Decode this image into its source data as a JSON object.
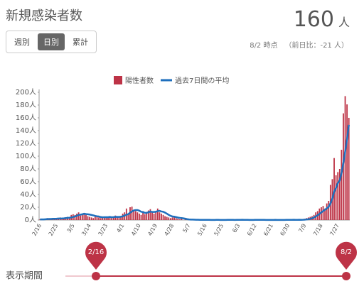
{
  "header": {
    "title": "新規感染者数",
    "tabs": [
      "週別",
      "日別",
      "累計"
    ]
  },
  "current": {
    "value": "160",
    "unit": "人",
    "date": "8/2 時点",
    "diff": "（前日比：-21 人）"
  },
  "period": {
    "label": "表示期間",
    "start": "2/16",
    "end": "8/2"
  },
  "chart_data": {
    "type": "bar",
    "categories": [
      "2/16",
      null,
      null,
      null,
      null,
      null,
      null,
      null,
      null,
      "2/25",
      null,
      null,
      null,
      null,
      null,
      null,
      null,
      null,
      "3/5",
      null,
      null,
      null,
      null,
      null,
      null,
      null,
      null,
      "3/14",
      null,
      null,
      null,
      null,
      null,
      null,
      null,
      null,
      "3/23",
      null,
      null,
      null,
      null,
      null,
      null,
      null,
      null,
      "4/1",
      null,
      null,
      null,
      null,
      null,
      null,
      null,
      null,
      "4/10",
      null,
      null,
      null,
      null,
      null,
      null,
      null,
      null,
      "4/19",
      null,
      null,
      null,
      null,
      null,
      null,
      null,
      null,
      "4/28",
      null,
      null,
      null,
      null,
      null,
      null,
      null,
      null,
      "5/7",
      null,
      null,
      null,
      null,
      null,
      null,
      null,
      null,
      "5/16",
      null,
      null,
      null,
      null,
      null,
      null,
      null,
      null,
      "5/25",
      null,
      null,
      null,
      null,
      null,
      null,
      null,
      null,
      "6/3",
      null,
      null,
      null,
      null,
      null,
      null,
      null,
      null,
      "6/12",
      null,
      null,
      null,
      null,
      null,
      null,
      null,
      null,
      "6/21",
      null,
      null,
      null,
      null,
      null,
      null,
      null,
      null,
      "6/30",
      null,
      null,
      null,
      null,
      null,
      null,
      null,
      null,
      "7/9",
      null,
      null,
      null,
      null,
      null,
      null,
      null,
      null,
      "7/18",
      null,
      null,
      null,
      null,
      null,
      null,
      null,
      null,
      "7/27",
      null,
      null,
      null,
      null,
      null,
      null
    ],
    "series": [
      {
        "name": "陽性者数",
        "type": "bar",
        "color": "#bd3346",
        "values": [
          1,
          2,
          1,
          2,
          3,
          2,
          1,
          2,
          3,
          2,
          3,
          4,
          2,
          3,
          4,
          5,
          3,
          8,
          9,
          8,
          10,
          12,
          7,
          9,
          11,
          8,
          6,
          5,
          4,
          3,
          5,
          6,
          4,
          3,
          5,
          4,
          5,
          4,
          6,
          3,
          5,
          7,
          4,
          5,
          6,
          10,
          12,
          18,
          9,
          20,
          21,
          15,
          14,
          12,
          10,
          8,
          14,
          9,
          11,
          15,
          17,
          12,
          10,
          14,
          18,
          12,
          10,
          8,
          6,
          5,
          4,
          3,
          4,
          6,
          3,
          2,
          1,
          2,
          0,
          1,
          0,
          1,
          0,
          1,
          0,
          0,
          1,
          0,
          0,
          0,
          0,
          1,
          0,
          0,
          0,
          0,
          1,
          0,
          0,
          0,
          0,
          0,
          1,
          0,
          0,
          0,
          0,
          1,
          0,
          0,
          1,
          0,
          0,
          0,
          0,
          0,
          0,
          1,
          0,
          0,
          0,
          1,
          0,
          0,
          0,
          0,
          0,
          0,
          1,
          0,
          0,
          0,
          0,
          0,
          1,
          0,
          0,
          0,
          1,
          0,
          0,
          1,
          0,
          1,
          2,
          3,
          4,
          5,
          6,
          8,
          12,
          14,
          18,
          20,
          22,
          18,
          26,
          30,
          55,
          64,
          97,
          70,
          75,
          80,
          110,
          167,
          194,
          181,
          160
        ]
      },
      {
        "name": "過去7日間の平均",
        "type": "line",
        "color": "#1e6fbd",
        "values": [
          1,
          1,
          1,
          1.2,
          1.5,
          1.6,
          1.7,
          1.9,
          2,
          2.1,
          2.3,
          2.4,
          2.5,
          2.7,
          3,
          3.3,
          3.6,
          4,
          4.8,
          5.5,
          6.6,
          7.9,
          8.4,
          9,
          9.9,
          9.3,
          9,
          8.6,
          7.9,
          7.3,
          6.4,
          5.9,
          5.5,
          4.7,
          4.3,
          4.4,
          4.4,
          4.4,
          4.9,
          4.3,
          4.6,
          5,
          4.9,
          4.9,
          5.1,
          5.9,
          7,
          8.4,
          9.1,
          11.6,
          13.4,
          15,
          15.6,
          15.6,
          14.6,
          13,
          12.4,
          11.3,
          11.3,
          12.1,
          13.4,
          12.6,
          12.6,
          12.9,
          13.9,
          14.4,
          13.4,
          12.9,
          11.6,
          9.9,
          8.1,
          6.6,
          5.6,
          5.3,
          4.6,
          3.9,
          3.3,
          3.1,
          2.6,
          2.1,
          1.4,
          1,
          0.7,
          0.7,
          0.6,
          0.4,
          0.4,
          0.3,
          0.3,
          0.3,
          0.3,
          0.3,
          0.3,
          0.1,
          0.1,
          0.1,
          0.3,
          0.3,
          0.1,
          0.1,
          0.1,
          0.1,
          0.3,
          0.3,
          0.3,
          0.3,
          0.1,
          0.3,
          0.3,
          0.3,
          0.4,
          0.3,
          0.3,
          0.3,
          0.1,
          0.1,
          0.1,
          0.3,
          0.3,
          0.3,
          0.3,
          0.3,
          0.3,
          0.1,
          0.1,
          0.1,
          0.1,
          0.1,
          0.3,
          0.1,
          0.1,
          0.1,
          0.1,
          0.1,
          0.3,
          0.3,
          0.3,
          0.3,
          0.4,
          0.3,
          0.3,
          0.4,
          0.3,
          0.4,
          0.6,
          0.9,
          1.3,
          1.9,
          2.7,
          3.9,
          5.6,
          7.4,
          9.6,
          11.9,
          14,
          16,
          18.3,
          20.6,
          26,
          33.6,
          44.6,
          50.1,
          57.9,
          61.6,
          73.6,
          89,
          107.4,
          126.6,
          149
        ]
      }
    ],
    "ylim": [
      0,
      200
    ],
    "yticks": [
      {
        "value": 0,
        "label": "0人"
      },
      {
        "value": 20,
        "label": "20人"
      },
      {
        "value": 40,
        "label": "40人"
      },
      {
        "value": 60,
        "label": "60人"
      },
      {
        "value": 80,
        "label": "80人"
      },
      {
        "value": 100,
        "label": "100人"
      },
      {
        "value": 120,
        "label": "120人"
      },
      {
        "value": 140,
        "label": "140人"
      },
      {
        "value": 160,
        "label": "160人"
      },
      {
        "value": 180,
        "label": "180人"
      },
      {
        "value": 200,
        "label": "200人"
      }
    ],
    "grid": false,
    "legend": "top"
  }
}
